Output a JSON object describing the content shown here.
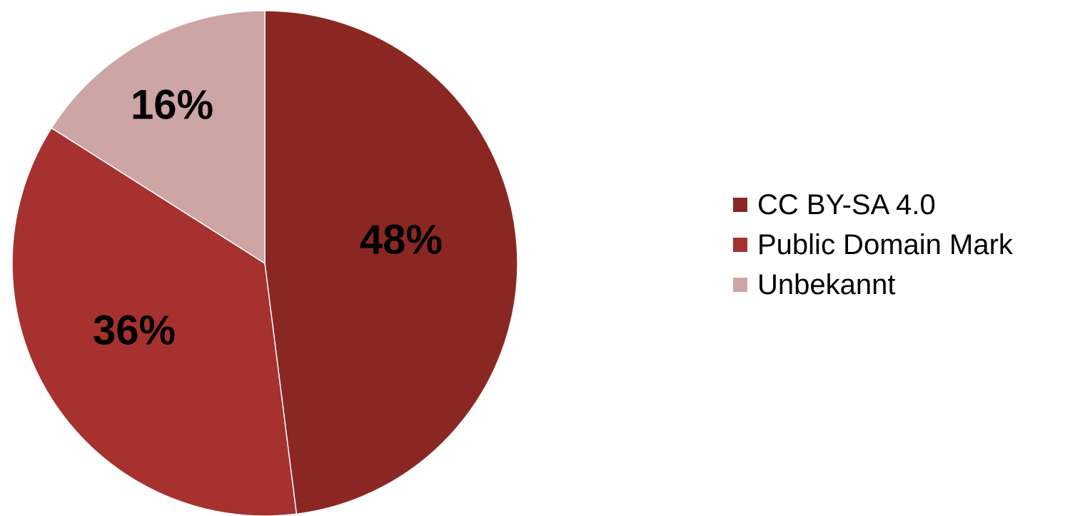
{
  "chart_data": {
    "type": "pie",
    "title": "",
    "slices": [
      {
        "label": "CC BY-SA 4.0",
        "value": 48,
        "display": "48%",
        "color": "#8B2723"
      },
      {
        "label": "Public Domain Mark",
        "value": 36,
        "display": "36%",
        "color": "#A6312F"
      },
      {
        "label": "Unbekannt",
        "value": 16,
        "display": "16%",
        "color": "#CDA5A4"
      }
    ],
    "start": "12 o'clock",
    "direction": "clockwise",
    "legend_placement": "right"
  }
}
